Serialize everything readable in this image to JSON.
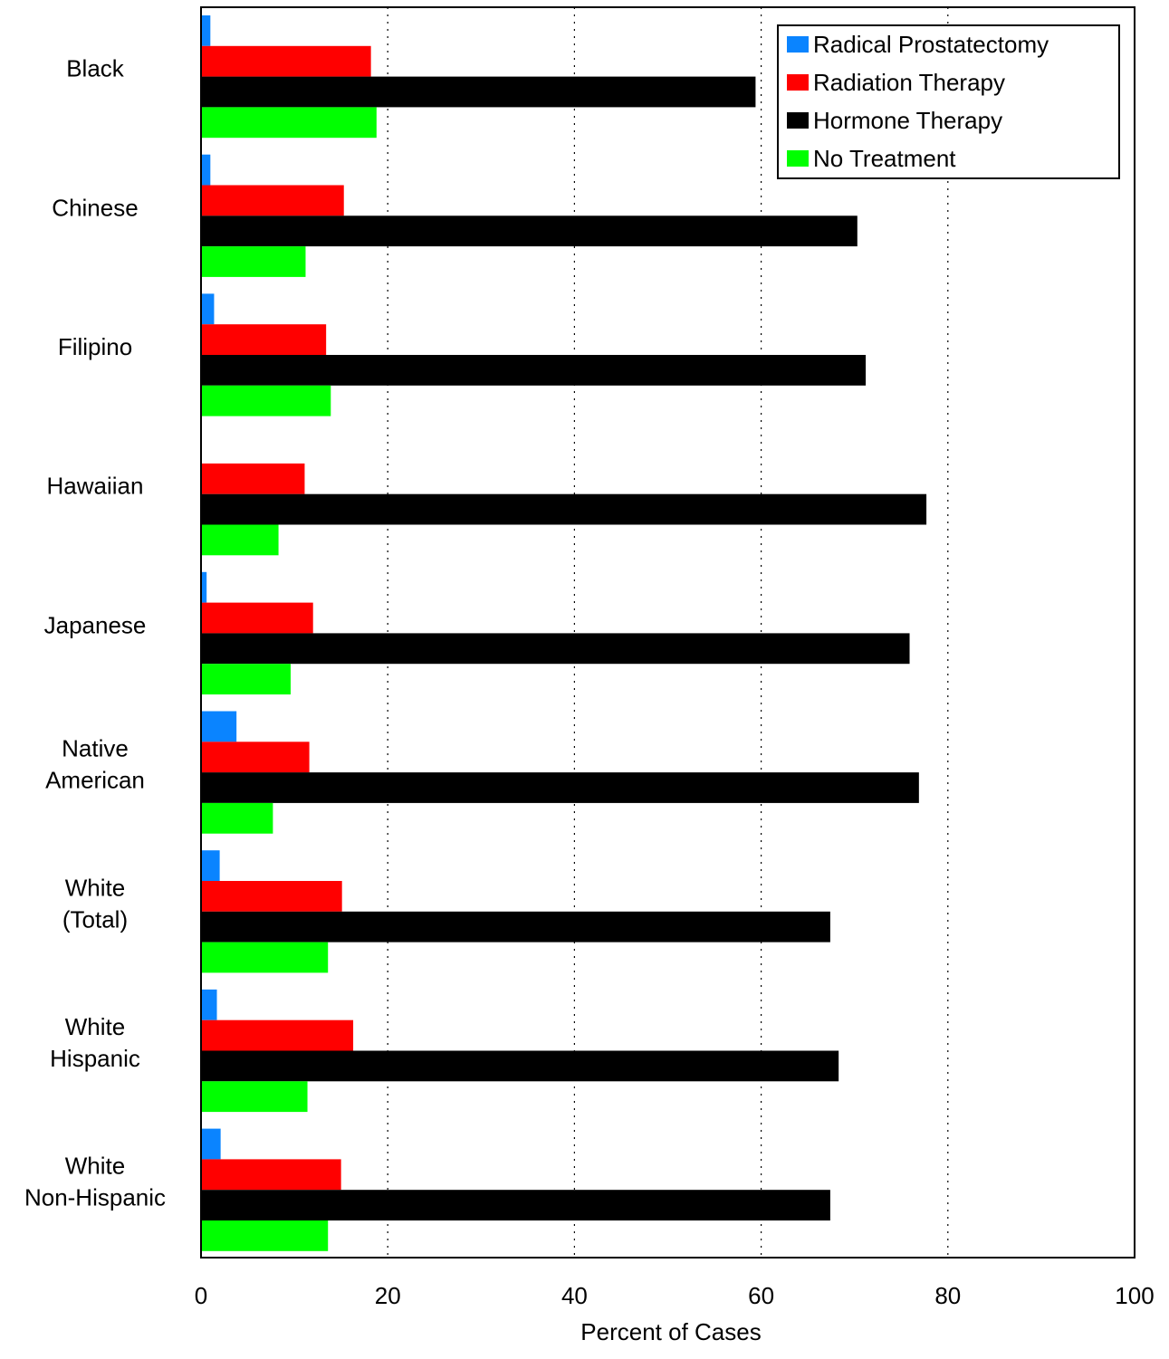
{
  "chart_data": {
    "type": "bar",
    "orientation": "horizontal",
    "categories": [
      [
        "Black"
      ],
      [
        "Chinese"
      ],
      [
        "Filipino"
      ],
      [
        "Hawaiian"
      ],
      [
        "Japanese"
      ],
      [
        "Native",
        "American"
      ],
      [
        "White",
        "(Total)"
      ],
      [
        "White",
        "Hispanic"
      ],
      [
        "White",
        "Non-Hispanic"
      ]
    ],
    "series": [
      {
        "name": "Radical Prostatectomy",
        "color": "#0a84ff",
        "values": [
          1.0,
          1.0,
          1.4,
          0.0,
          0.6,
          3.8,
          2.0,
          1.7,
          2.1
        ]
      },
      {
        "name": "Radiation Therapy",
        "color": "#ff0000",
        "values": [
          18.2,
          15.3,
          13.4,
          11.1,
          12.0,
          11.6,
          15.1,
          16.3,
          15.0
        ]
      },
      {
        "name": "Hormone Therapy",
        "color": "#000000",
        "values": [
          59.4,
          70.3,
          71.2,
          77.7,
          75.9,
          76.9,
          67.4,
          68.3,
          67.4
        ]
      },
      {
        "name": "No Treatment",
        "color": "#00ff00",
        "values": [
          18.8,
          11.2,
          13.9,
          8.3,
          9.6,
          7.7,
          13.6,
          11.4,
          13.6
        ]
      }
    ],
    "xlabel": "Percent of Cases",
    "ylabel": "",
    "xlim": [
      0,
      100
    ],
    "xticks": [
      0,
      20,
      40,
      60,
      80,
      100
    ],
    "grid": "vertical dotted",
    "legend_position": "top-right"
  }
}
